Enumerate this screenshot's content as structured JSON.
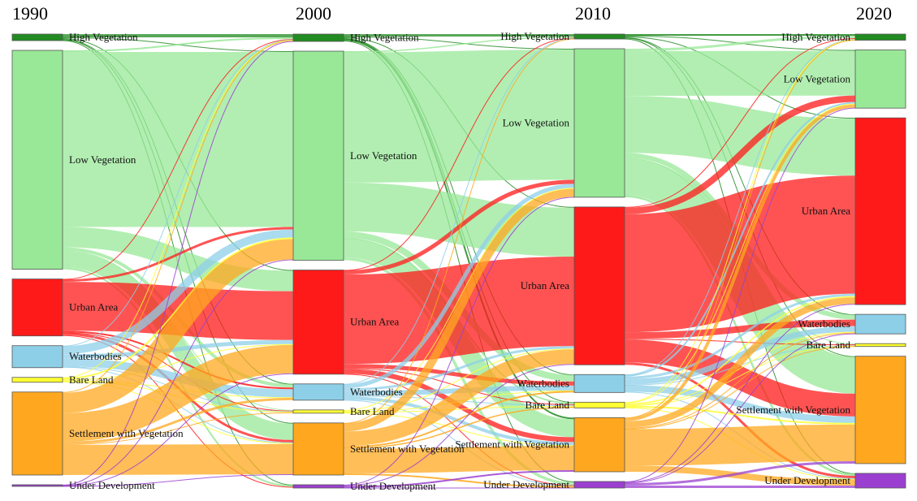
{
  "chart_data": {
    "type": "sankey",
    "title": "",
    "stages": [
      "1990",
      "2000",
      "2010",
      "2020"
    ],
    "categories": [
      "High Vegetation",
      "Low Vegetation",
      "Urban Area",
      "Waterbodies",
      "Bare Land",
      "Settlement with Vegetation",
      "Under Development"
    ],
    "colors": {
      "High Vegetation": "#228b22",
      "Low Vegetation": "#98e898",
      "Urban Area": "#ff1a1a",
      "Waterbodies": "#8ecfe8",
      "Bare Land": "#ffff33",
      "Settlement with Vegetation": "#ffa81f",
      "Under Development": "#9b3fd0"
    },
    "transitions": [
      {
        "from": "1990",
        "to": "2000",
        "matrix": [
          [
            4,
            1,
            1,
            0.5,
            0,
            1,
            0.5
          ],
          [
            2,
            215,
            25,
            4,
            1,
            20,
            2
          ],
          [
            0.5,
            3,
            60,
            2,
            0.5,
            3,
            1
          ],
          [
            0.5,
            10,
            5,
            10,
            0.5,
            1,
            0
          ],
          [
            0.5,
            2,
            1,
            0.5,
            1,
            1,
            0
          ],
          [
            1,
            25,
            35,
            3,
            1,
            37,
            0
          ],
          [
            0.5,
            0.5,
            0.5,
            0,
            0,
            0.5,
            0
          ]
        ]
      },
      {
        "from": "2000",
        "to": "2010",
        "matrix": [
          [
            3,
            1,
            1,
            0.5,
            0.5,
            2,
            1
          ],
          [
            1.5,
            160,
            60,
            8,
            2,
            22,
            3.5
          ],
          [
            0.5,
            5,
            110,
            5,
            1,
            6,
            0.5
          ],
          [
            0.5,
            5,
            3,
            6,
            1,
            4,
            0.5
          ],
          [
            0,
            1,
            1,
            0.5,
            1,
            0.5,
            0
          ],
          [
            0.5,
            10,
            18,
            2,
            1.5,
            30,
            2
          ],
          [
            0,
            0.5,
            1,
            0,
            0,
            2,
            0.5
          ]
        ]
      },
      {
        "from": "2010",
        "to": "2020",
        "matrix": [
          [
            2,
            1,
            1,
            0.5,
            0,
            1,
            0.5
          ],
          [
            3,
            55,
            70,
            6,
            1,
            45,
            2.5
          ],
          [
            1,
            8,
            145,
            8,
            1,
            28,
            3
          ],
          [
            0.5,
            2,
            3,
            7,
            0.5,
            8,
            1
          ],
          [
            0.5,
            1,
            1.5,
            1,
            0.5,
            2,
            0.5
          ],
          [
            0.5,
            4,
            8,
            1,
            0.5,
            45,
            7.5
          ],
          [
            0,
            0.5,
            1,
            0.5,
            0,
            3,
            3
          ]
        ]
      }
    ]
  }
}
